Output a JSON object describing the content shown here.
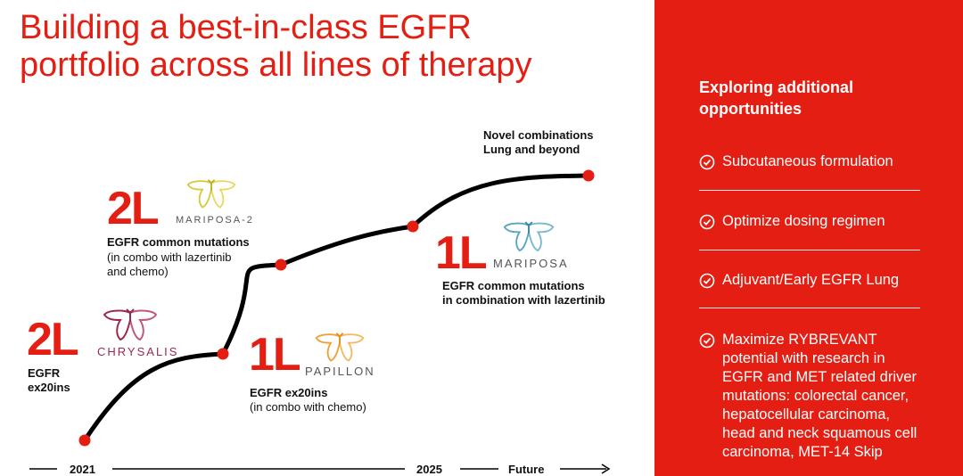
{
  "title_line1": "Building a best-in-class EGFR",
  "title_line2": "portfolio across all lines of therapy",
  "milestones": {
    "chrysalis": {
      "line": "2L",
      "trial": "CHRYSALIS",
      "label1": "EGFR",
      "label2": "ex20ins"
    },
    "mariposa2": {
      "line": "2L",
      "trial": "MARIPOSA-2",
      "label": "EGFR common mutations",
      "note1": "(in combo with lazertinib",
      "note2": "and chemo)"
    },
    "papillon": {
      "line": "1L",
      "trial": "PAPILLON",
      "label": "EGFR ex20ins",
      "note": "(in combo with chemo)"
    },
    "mariposa": {
      "line": "1L",
      "trial": "MARIPOSA",
      "label1": "EGFR common mutations",
      "label2": "in combination with lazertinib"
    },
    "novel": {
      "label1": "Novel combinations",
      "label2": "Lung and beyond"
    }
  },
  "timeline": {
    "start": "2021",
    "mid": "2025",
    "end": "Future"
  },
  "panel": {
    "heading_line1": "Exploring additional",
    "heading_line2": "opportunities",
    "items": [
      {
        "text": "Subcutaneous formulation"
      },
      {
        "text": "Optimize dosing regimen"
      },
      {
        "text": "Adjuvant/Early EGFR Lung"
      },
      {
        "text": "Maximize RYBREVANT potential with research in EGFR and MET related driver mutations: colorectal cancer, hepatocellular carcinoma, head and neck squamous cell carcinoma, MET-14 Skip"
      }
    ]
  },
  "colors": {
    "accent": "#e41e12",
    "chrysalis": "#9b2a4a",
    "mariposa2": "#d8c83a",
    "papillon": "#f0a030",
    "mariposa": "#5aa6c0"
  }
}
